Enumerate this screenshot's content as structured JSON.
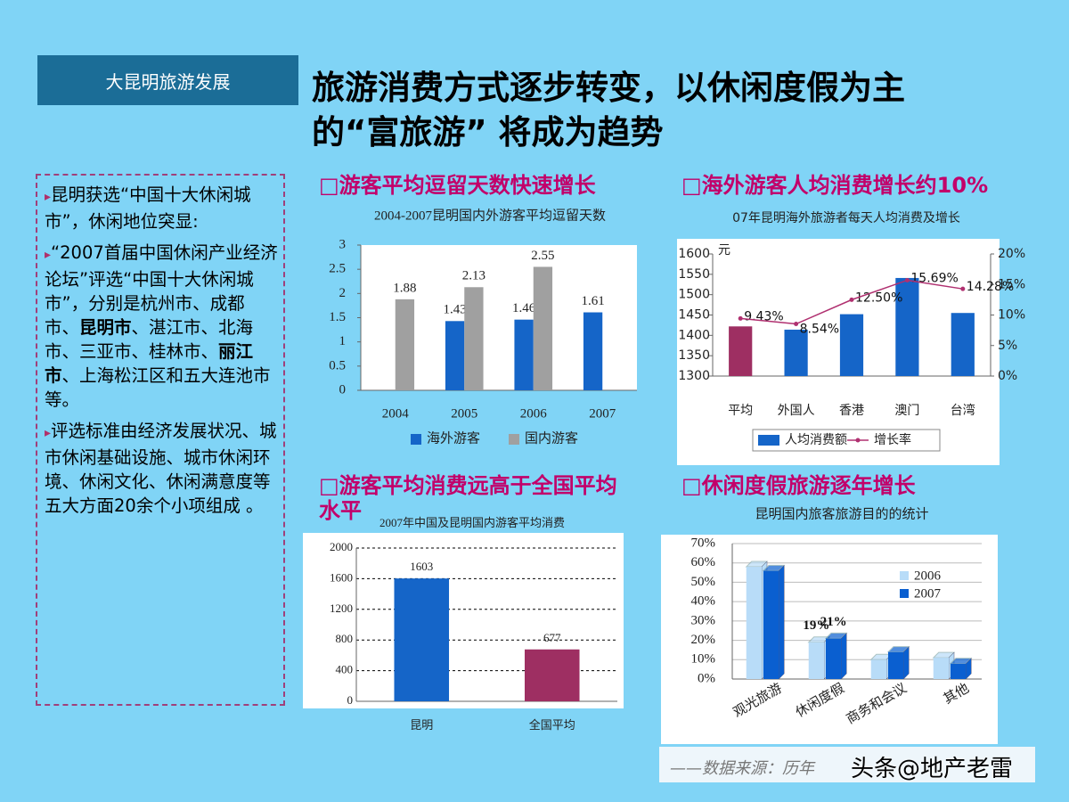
{
  "header": {
    "tag": "大昆明旅游发展",
    "title_lines": [
      "旅游消费方式逐步转变，以休闲度假为主",
      "的“富旅游” 将成为趋势"
    ]
  },
  "bullets": [
    {
      "parts": [
        "昆明获选“中国十大休闲城市”，休闲地位突显:"
      ],
      "bold": []
    },
    {
      "parts": [
        "“2007首届中国休闲产业经济论坛”评选“中国十大休闲城市”，分别是杭州市、成都市、",
        "昆明市",
        "、湛江市、北海市、三亚市、桂林市、",
        "丽江市",
        "、上海松江区和五大连池市等。"
      ],
      "bold": [
        1,
        3
      ]
    },
    {
      "parts": [
        "评选标准由经济发展状况、城市休闲基础设施、城市休闲环境、休闲文化、休闲满意度等五大方面20余个小项组成 。"
      ],
      "bold": []
    }
  ],
  "chart_data": [
    {
      "type": "bar",
      "heading": "□游客平均逗留天数快速增长",
      "title": "2004-2007昆明国内外游客平均逗留天数",
      "categories": [
        "2004",
        "2005",
        "2006",
        "2007"
      ],
      "series": [
        {
          "name": "海外游客",
          "color": "#1565c8",
          "values": [
            null,
            1.43,
            1.46,
            1.61
          ]
        },
        {
          "name": "国内游客",
          "color": "#a0a0a0",
          "values": [
            1.88,
            2.13,
            2.55,
            null
          ]
        }
      ],
      "data_labels": true,
      "ylim": [
        0,
        3
      ],
      "yticks": [
        0,
        0.5,
        1,
        1.5,
        2,
        2.5,
        3
      ],
      "grid": false,
      "legend": "bottom"
    },
    {
      "type": "bar",
      "heading": "□海外游客人均消费增长约10%",
      "title": "07年昆明海外旅游者每天人均消费及增长",
      "ylabel": "元",
      "categories": [
        "平均",
        "外国人",
        "香港",
        "澳门",
        "台湾"
      ],
      "series": [
        {
          "name": "人均消费额",
          "color": "#1565c8",
          "colors": [
            "#9e2f62",
            "#1565c8",
            "#1565c8",
            "#1565c8",
            "#1565c8"
          ],
          "values": [
            1422,
            1414,
            1452,
            1541,
            1455
          ]
        },
        {
          "name": "增长率",
          "type": "line",
          "axis": "y2",
          "color": "#b03070",
          "values": [
            9.43,
            8.54,
            12.5,
            15.69,
            14.28
          ],
          "value_labels": [
            "9.43%",
            "8.54%",
            "12.50%",
            "15.69%",
            "14.28%"
          ]
        }
      ],
      "ylim": [
        1300,
        1600
      ],
      "yticks": [
        1300,
        1350,
        1400,
        1450,
        1500,
        1550,
        1600
      ],
      "y2lim": [
        0,
        20
      ],
      "y2ticks": [
        {
          "value": 0,
          "label": "0%"
        },
        {
          "value": 5,
          "label": "5%"
        },
        {
          "value": 10,
          "label": "10%"
        },
        {
          "value": 15,
          "label": "15%"
        },
        {
          "value": 20,
          "label": "20%"
        }
      ],
      "grid": false,
      "legend": "bottom"
    },
    {
      "type": "bar",
      "heading": "□游客平均消费远高于全国平均水平",
      "title": "2007年中国及昆明国内游客平均消费",
      "categories": [
        "昆明",
        "全国平均"
      ],
      "values": [
        1603,
        677
      ],
      "colors": [
        "#1565c8",
        "#9e2f62"
      ],
      "data_labels": true,
      "ylim": [
        0,
        2000
      ],
      "yticks": [
        0,
        400,
        800,
        1200,
        1600,
        2000
      ],
      "grid": true
    },
    {
      "type": "bar",
      "heading": "□休闲度假旅游逐年增长",
      "title": "昆明国内旅客旅游目的的统计",
      "categories": [
        "观光旅游",
        "休闲度假",
        "商务和会议",
        "其他"
      ],
      "series": [
        {
          "name": "2006",
          "color": "#b8dcf8",
          "values": [
            58,
            19,
            10,
            11
          ],
          "value_labels": [
            null,
            "19%",
            null,
            null
          ]
        },
        {
          "name": "2007",
          "color": "#0a5fd0",
          "values": [
            56,
            21,
            14,
            8
          ],
          "value_labels": [
            null,
            "21%",
            null,
            null
          ]
        }
      ],
      "ylim": [
        0,
        70
      ],
      "yticks": [
        {
          "value": 0,
          "label": "0%"
        },
        {
          "value": 10,
          "label": "10%"
        },
        {
          "value": 20,
          "label": "20%"
        },
        {
          "value": 30,
          "label": "30%"
        },
        {
          "value": 40,
          "label": "40%"
        },
        {
          "value": 50,
          "label": "50%"
        },
        {
          "value": 60,
          "label": "60%"
        },
        {
          "value": 70,
          "label": "70%"
        }
      ],
      "grid": true,
      "legend": "right"
    }
  ],
  "footer": {
    "source": "——数据来源：历年",
    "watermark": "头条@地产老雷"
  }
}
